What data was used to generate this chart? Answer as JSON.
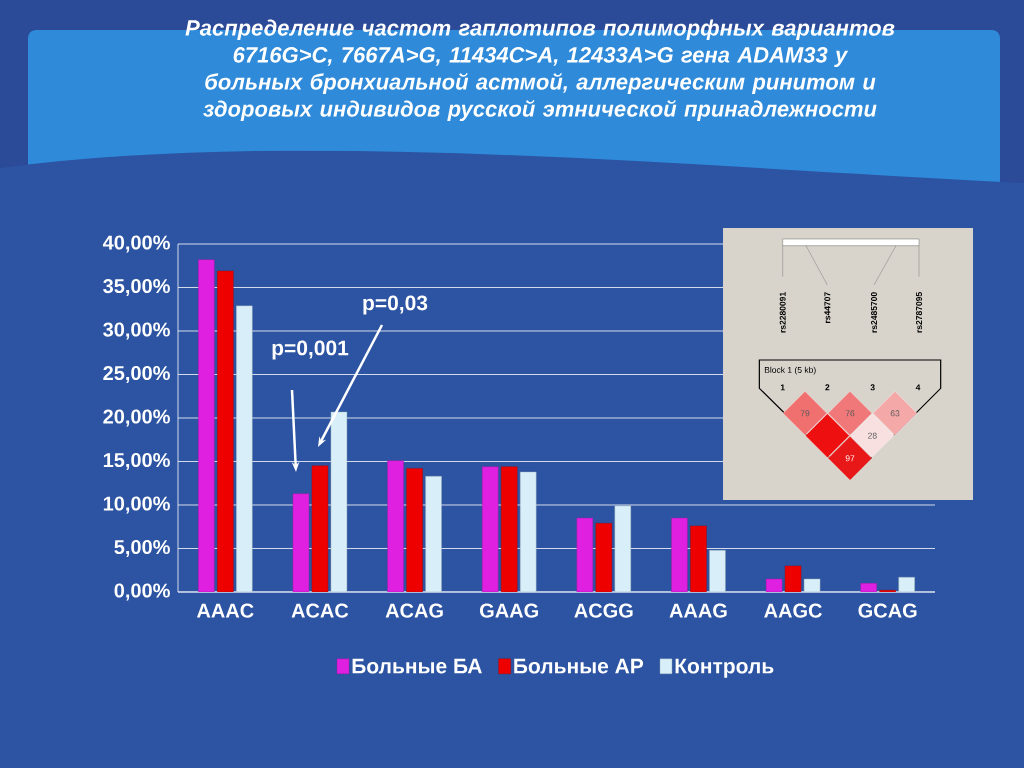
{
  "chart_data": {
    "type": "bar",
    "title": "Распределение частот гаплотипов полиморфных вариантов 6716G>C, 7667A>G, 11434C>A, 12433A>G гена ADAM33 у больных бронхиальной астмой, аллергическим ринитом и здоровых индивидов русской этнической принадлежности",
    "categories": [
      "AAAC",
      "ACAC",
      "ACAG",
      "GAAG",
      "ACGG",
      "AAAG",
      "AAGC",
      "GCAG"
    ],
    "series": [
      {
        "name": "Больные БА",
        "color": "#e020e0",
        "values": [
          38.2,
          11.3,
          15.1,
          14.4,
          8.5,
          8.5,
          1.5,
          1.0
        ]
      },
      {
        "name": "Больные АР",
        "color": "#ee0000",
        "values": [
          36.9,
          14.5,
          14.2,
          14.4,
          7.9,
          7.6,
          3.0,
          0.2
        ]
      },
      {
        "name": "Контроль",
        "color": "#d8eef8",
        "values": [
          32.9,
          20.7,
          13.3,
          13.8,
          9.9,
          4.8,
          1.5,
          1.7
        ]
      }
    ],
    "ylim": [
      0,
      40
    ],
    "yticks": [
      {
        "value": 0,
        "label": "0,00%"
      },
      {
        "value": 5,
        "label": "5,00%"
      },
      {
        "value": 10,
        "label": "10,00%"
      },
      {
        "value": 15,
        "label": "15,00%"
      },
      {
        "value": 20,
        "label": "20,00%"
      },
      {
        "value": 25,
        "label": "25,00%"
      },
      {
        "value": 30,
        "label": "30,00%"
      },
      {
        "value": 35,
        "label": "35,00%"
      },
      {
        "value": 40,
        "label": "40,00%"
      }
    ],
    "grid": "y",
    "legend": "bottom",
    "annotations": [
      "p=0,001",
      "p=0,03",
      "rs2280091",
      "rs44707",
      "rs2485700",
      "rs2787095",
      "Block 1 (5 kb)",
      "1",
      "2",
      "3",
      "4",
      "79",
      "76",
      "63",
      "28",
      "97"
    ]
  }
}
